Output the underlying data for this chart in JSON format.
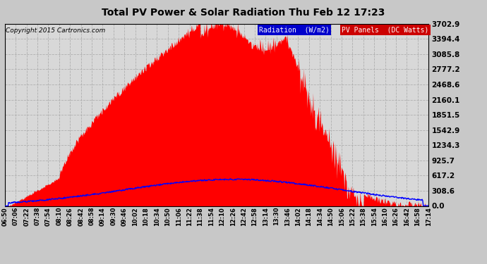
{
  "title": "Total PV Power & Solar Radiation Thu Feb 12 17:23",
  "copyright": "Copyright 2015 Cartronics.com",
  "legend_labels": [
    "Radiation  (W/m2)",
    "PV Panels  (DC Watts)"
  ],
  "y_ticks": [
    0.0,
    308.6,
    617.2,
    925.7,
    1234.3,
    1542.9,
    1851.5,
    2160.1,
    2468.6,
    2777.2,
    3085.8,
    3394.4,
    3702.9
  ],
  "y_max": 3702.9,
  "x_tick_labels": [
    "06:50",
    "07:06",
    "07:22",
    "07:38",
    "07:54",
    "08:10",
    "08:26",
    "08:42",
    "08:58",
    "09:14",
    "09:30",
    "09:46",
    "10:02",
    "10:18",
    "10:34",
    "10:50",
    "11:06",
    "11:22",
    "11:38",
    "11:54",
    "12:10",
    "12:26",
    "12:42",
    "12:58",
    "13:14",
    "13:30",
    "13:46",
    "14:02",
    "14:18",
    "14:34",
    "14:50",
    "15:06",
    "15:22",
    "15:38",
    "15:54",
    "16:10",
    "16:26",
    "16:42",
    "16:58",
    "17:14"
  ],
  "bg_color": "#c8c8c8",
  "plot_bg_color": "#d8d8d8",
  "grid_color": "#ffffff",
  "red_fill_color": "#ff0000",
  "blue_line_color": "#0000ff"
}
